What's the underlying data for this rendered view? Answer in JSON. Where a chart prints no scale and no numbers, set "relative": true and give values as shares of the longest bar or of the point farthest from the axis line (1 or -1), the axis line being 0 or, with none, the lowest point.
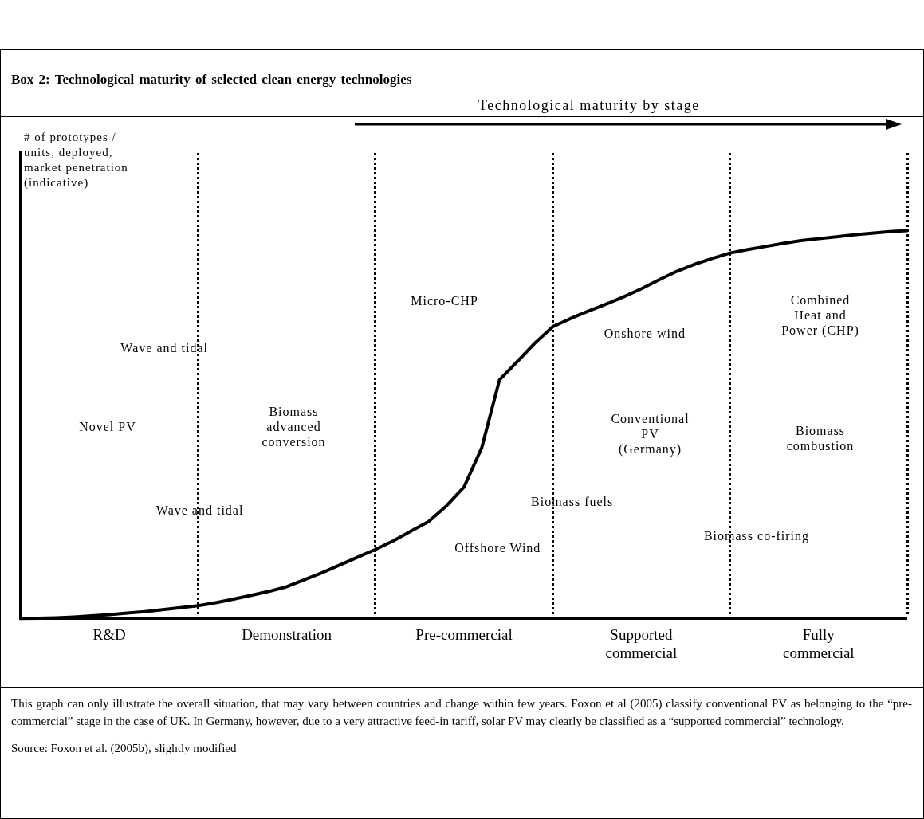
{
  "chart_data": {
    "type": "line",
    "title": "Box 2: Technological maturity of selected clean energy technologies",
    "grid": "x",
    "ylabel": "# of prototypes / units, deployed, market penetration (indicative)",
    "relative": true,
    "categories": [
      null,
      null,
      null,
      null,
      null,
      "R&D",
      null,
      null,
      null,
      null,
      null,
      null,
      null,
      null,
      null,
      "Demonstration",
      null,
      null,
      null,
      null,
      null,
      null,
      null,
      null,
      null,
      "Pre-commercial",
      null,
      null,
      null,
      null,
      null,
      null,
      null,
      null,
      null,
      "Supported commercial",
      null,
      null,
      null,
      null,
      null,
      null,
      null,
      null,
      null,
      "Fully commercial",
      null,
      null,
      null,
      null,
      null
    ],
    "series": [
      {
        "color": "#000000",
        "values": [
          0,
          0.001,
          0.002,
          0.004,
          0.007,
          0.01,
          0.014,
          0.018,
          0.023,
          0.028,
          0.033,
          0.041,
          0.05,
          0.06,
          0.07,
          0.082,
          0.1,
          0.118,
          0.138,
          0.158,
          0.178,
          0.2,
          0.225,
          0.25,
          0.29,
          0.339,
          0.44,
          0.615,
          0.662,
          0.71,
          0.752,
          0.773,
          0.792,
          0.81,
          0.829,
          0.85,
          0.873,
          0.895,
          0.913,
          0.928,
          0.942,
          0.951,
          0.959,
          0.967,
          0.974,
          0.979,
          0.984,
          0.989,
          0.993,
          0.997,
          1.0
        ]
      }
    ],
    "marker": "none",
    "line_style": "solid",
    "annotations": [
      "Wave and tidal",
      "Novel PV",
      "Biomass advanced conversion",
      "Wave and tidal",
      "Micro-CHP",
      "Offshore Wind",
      "Biomass fuels",
      "Onshore wind",
      "Conventional PV (Germany)",
      "Biomass co-firing",
      "Combined Heat and Power (CHP)",
      "Biomass combustion",
      "Technological maturity by stage",
      "This graph can only illustrate the overall situation, that may vary between countries and change within few years. Foxon et al (2005) classify conventional PV as belonging to the “pre-commercial” stage in the case of UK. In Germany, however, due to a very attractive feed-in tariff, solar PV may clearly be classified as a “supported commercial” technology.",
      "Source: Foxon et al. (2005b), slightly modified"
    ]
  }
}
